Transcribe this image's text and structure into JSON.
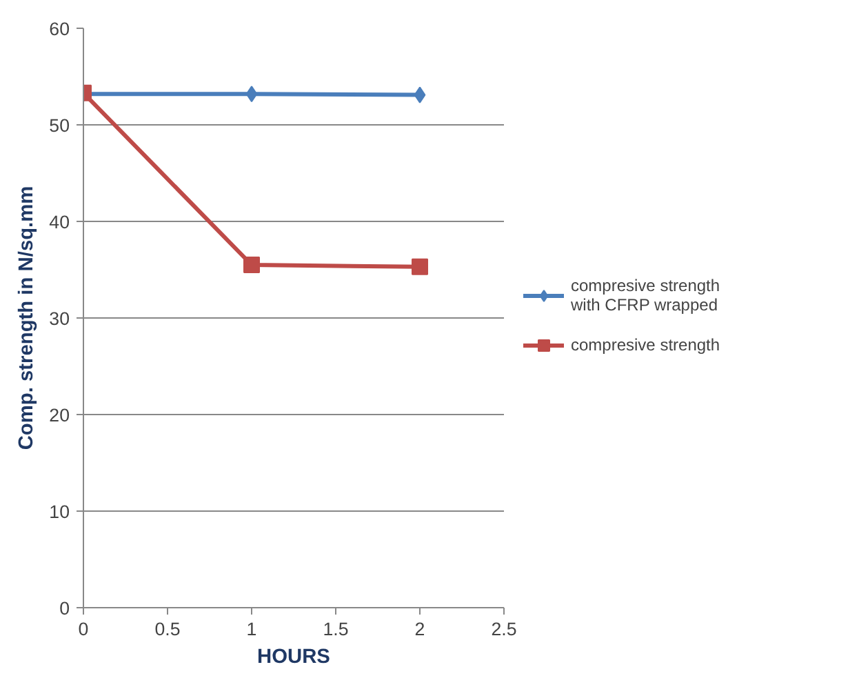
{
  "chart_data": {
    "type": "line",
    "xlabel": "HOURS",
    "ylabel": "Comp. strength in N/sq.mm",
    "x": [
      0,
      1,
      2
    ],
    "series": [
      {
        "name": "compresive strength with CFRP wrapped",
        "color": "#4a7ebb",
        "values": [
          53.2,
          53.2,
          53.1
        ],
        "marker": "diamond"
      },
      {
        "name": "compresive strength",
        "color": "#be4b48",
        "values": [
          53.3,
          35.5,
          35.3
        ],
        "marker": "square"
      }
    ],
    "xlim": [
      0,
      2.5
    ],
    "xticks": [
      0,
      0.5,
      1,
      1.5,
      2,
      2.5
    ],
    "ylim": [
      0,
      60
    ],
    "yticks": [
      0,
      10,
      20,
      30,
      40,
      50,
      60
    ],
    "grid": "y",
    "legend": "right"
  }
}
